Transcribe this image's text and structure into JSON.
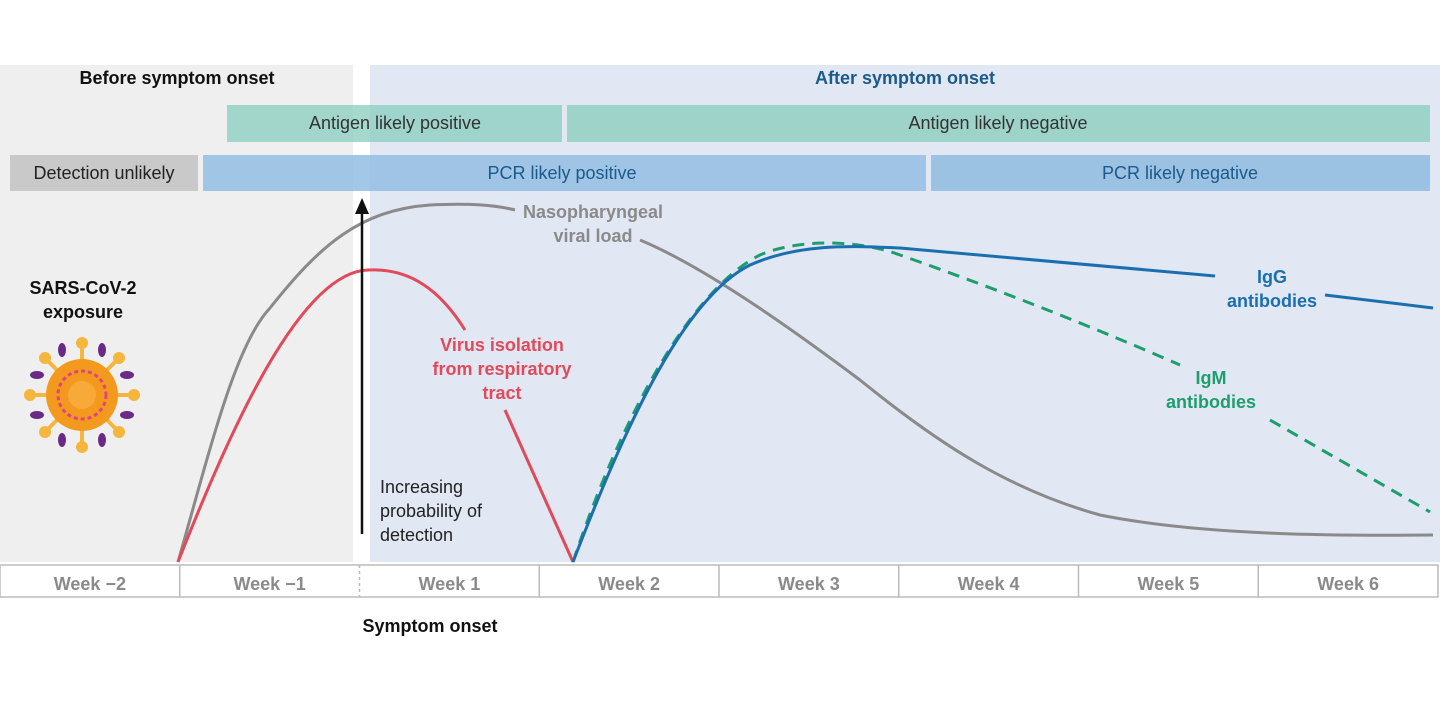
{
  "regions": {
    "before": "Before symptom onset",
    "after": "After symptom onset"
  },
  "antigen": [
    "Antigen likely positive",
    "Antigen likely negative"
  ],
  "pcr": [
    "Detection unlikely",
    "PCR likely positive",
    "PCR likely negative"
  ],
  "exposure": [
    "SARS-CoV-2",
    "exposure"
  ],
  "curves": {
    "viral_load": [
      "Nasopharyngeal",
      "viral load"
    ],
    "virus_isolation": [
      "Virus isolation",
      "from respiratory",
      "tract"
    ],
    "igg": [
      "IgG",
      "antibodies"
    ],
    "igm": [
      "IgM",
      "antibodies"
    ]
  },
  "arrow": [
    "Increasing",
    "probability of",
    "detection"
  ],
  "weeks": [
    "Week −2",
    "Week −1",
    "Week 1",
    "Week 2",
    "Week 3",
    "Week 4",
    "Week 5",
    "Week 6"
  ],
  "symptom_onset": "Symptom onset"
}
